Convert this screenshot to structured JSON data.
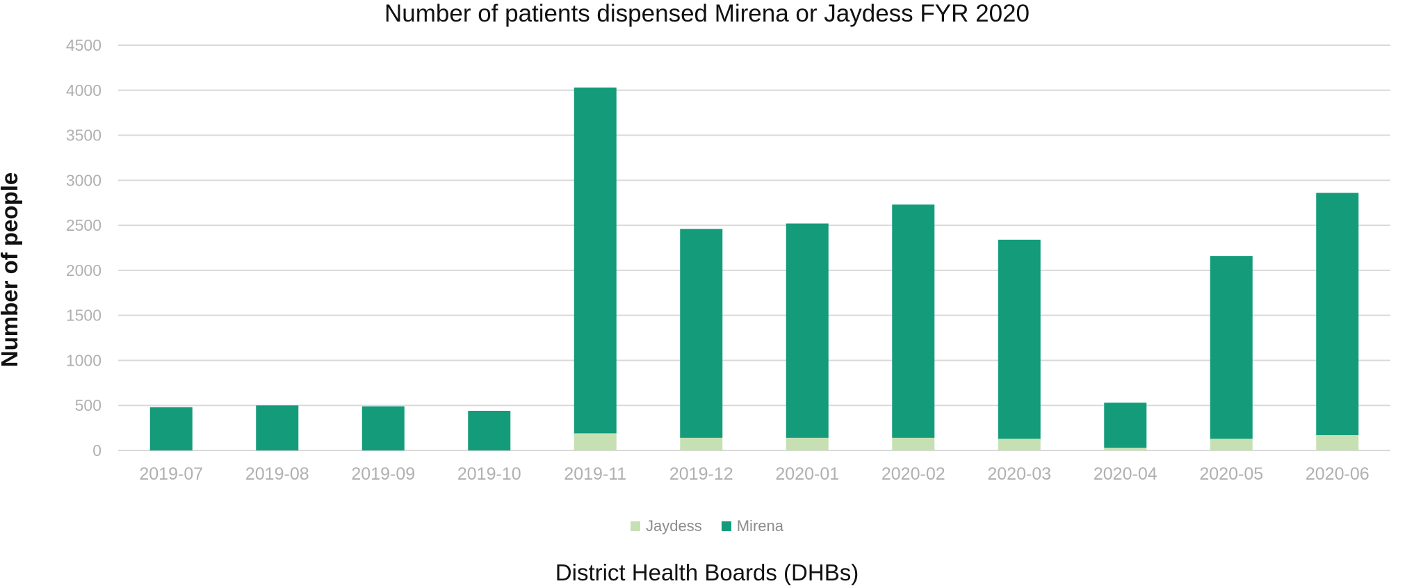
{
  "chart_data": {
    "type": "bar",
    "stacked": true,
    "title": "Number of patients dispensed Mirena or Jaydess FYR 2020",
    "xlabel": "District Health Boards (DHBs)",
    "ylabel": "Number of people",
    "ylim": [
      0,
      4500
    ],
    "yticks": [
      0,
      500,
      1000,
      1500,
      2000,
      2500,
      3000,
      3500,
      4000,
      4500
    ],
    "grid": true,
    "legend_position": "bottom",
    "categories": [
      "2019-07",
      "2019-08",
      "2019-09",
      "2019-10",
      "2019-11",
      "2019-12",
      "2020-01",
      "2020-02",
      "2020-03",
      "2020-04",
      "2020-05",
      "2020-06"
    ],
    "series": [
      {
        "name": "Jaydess",
        "color": "#c6e0b4",
        "values": [
          0,
          0,
          0,
          0,
          190,
          140,
          140,
          140,
          130,
          30,
          130,
          170
        ]
      },
      {
        "name": "Mirena",
        "color": "#149b7a",
        "values": [
          480,
          500,
          490,
          440,
          3840,
          2320,
          2380,
          2590,
          2210,
          500,
          2030,
          2690
        ]
      }
    ]
  }
}
